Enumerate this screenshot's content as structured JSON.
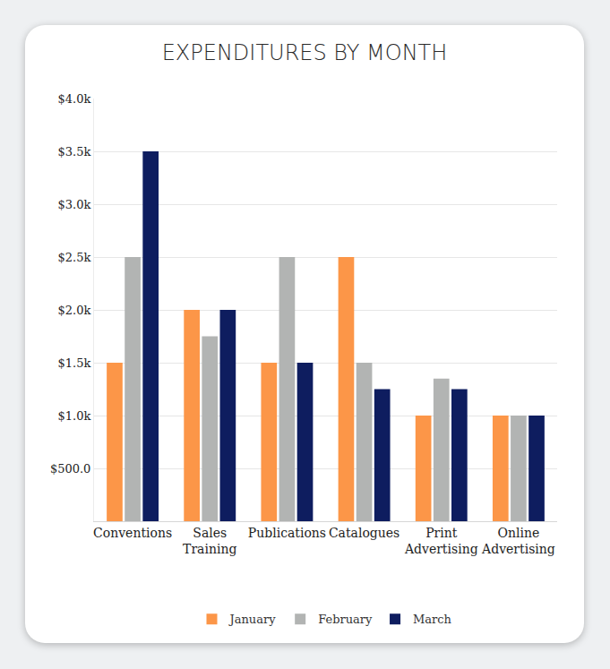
{
  "chart_data": {
    "type": "bar",
    "title": "EXPENDITURES BY MONTH",
    "categories": [
      "Conventions",
      "Sales Training",
      "Publications",
      "Catalogues",
      "Print Advertising",
      "Online Advertising"
    ],
    "series": [
      {
        "name": "January",
        "color": "#fc9648",
        "values": [
          1500,
          2000,
          1500,
          2500,
          1000,
          1000
        ]
      },
      {
        "name": "February",
        "color": "#b2b4b3",
        "values": [
          2500,
          1750,
          2500,
          1500,
          1350,
          1000
        ]
      },
      {
        "name": "March",
        "color": "#0e1d5f",
        "values": [
          3500,
          2000,
          1500,
          1250,
          1250,
          1000
        ]
      }
    ],
    "ylim": [
      0,
      4000
    ],
    "yticks": [
      {
        "value": 500,
        "label": "$500.0"
      },
      {
        "value": 1000,
        "label": "$1.0k"
      },
      {
        "value": 1500,
        "label": "$1.5k"
      },
      {
        "value": 2000,
        "label": "$2.0k"
      },
      {
        "value": 2500,
        "label": "$2.5k"
      },
      {
        "value": 3000,
        "label": "$3.0k"
      },
      {
        "value": 3500,
        "label": "$3.5k"
      },
      {
        "value": 4000,
        "label": "$4.0k"
      }
    ],
    "grid": true,
    "legend": "bottom"
  }
}
